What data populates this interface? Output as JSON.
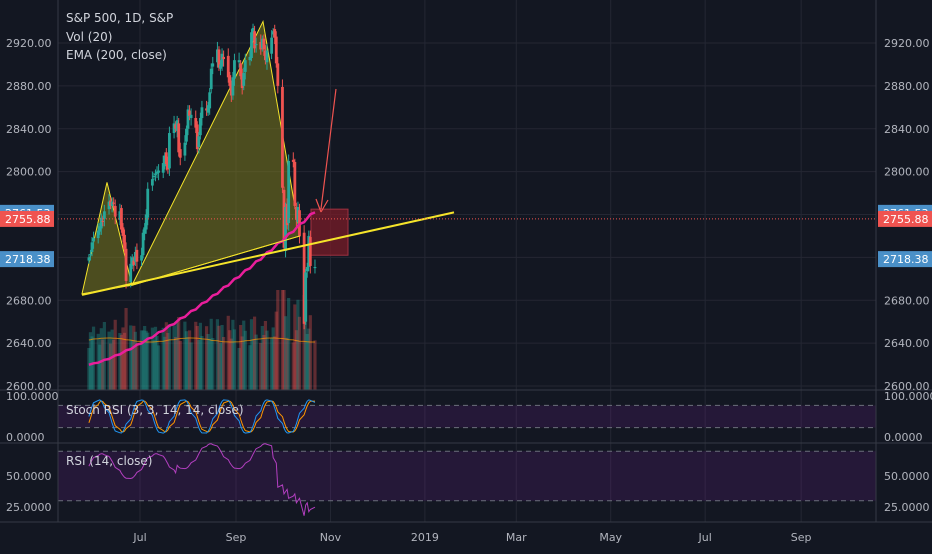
{
  "colors": {
    "background": "#131722",
    "grid": "#242733",
    "up": "#26a69a",
    "down": "#ef5350",
    "ema": "#e91e9b",
    "trendline": "#f5e42a",
    "pattern_fill": "#7c7a1e",
    "rsi_line": "#b23fbf",
    "stoch_k": "#2196f3",
    "stoch_d": "#ff9800",
    "box": "#7a1c28"
  },
  "chart_data": [
    {
      "type": "candlestick",
      "title": "S&P 500, 1D, S&P",
      "legend": [
        "Vol (20)",
        "EMA (200, close)"
      ],
      "ylim": [
        2600,
        2960
      ],
      "y_ticks": [
        "2600.00",
        "2640.00",
        "2680.00",
        "2720.00",
        "2760.00",
        "2800.00",
        "2840.00",
        "2880.00",
        "2920.00"
      ],
      "x_ticks": [
        "Jul",
        "Sep",
        "Nov",
        "2019",
        "Mar",
        "May",
        "Jul",
        "Sep"
      ],
      "price_labels": [
        {
          "value": 2761.53,
          "text": "2761.53",
          "color": "#4a90c8"
        },
        {
          "value": 2755.88,
          "text": "2755.88",
          "color": "#ef5350"
        },
        {
          "value": 2718.38,
          "text": "2718.38",
          "color": "#4a90c8"
        }
      ],
      "start_date": "2018-05-29",
      "closes": [
        2720,
        2723,
        2734,
        2738,
        2745,
        2749,
        2757,
        2753,
        2763,
        2772,
        2768,
        2772,
        2770,
        2758,
        2763,
        2746,
        2740,
        2728,
        2698,
        2714,
        2720,
        2713,
        2725,
        2716,
        2722,
        2743,
        2748,
        2760,
        2784,
        2793,
        2796,
        2798,
        2800,
        2801,
        2808,
        2815,
        2807,
        2802,
        2836,
        2845,
        2840,
        2848,
        2818,
        2813,
        2827,
        2840,
        2858,
        2852,
        2853,
        2841,
        2821,
        2833,
        2850,
        2860,
        2857,
        2862,
        2874,
        2896,
        2901,
        2914,
        2897,
        2900,
        2910,
        2905,
        2888,
        2880,
        2871,
        2888,
        2904,
        2904,
        2889,
        2878,
        2892,
        2904,
        2907,
        2930,
        2934,
        2915,
        2919,
        2914,
        2924,
        2914,
        2904,
        2913,
        2925,
        2931,
        2925,
        2901,
        2880,
        2785,
        2729,
        2767,
        2750,
        2810,
        2809,
        2768,
        2755,
        2767,
        2740,
        2658,
        2706,
        2711,
        2740,
        2712,
        2711
      ],
      "ema_200": {
        "start": 2620,
        "end": 2762
      },
      "volume_max": 1,
      "pattern": {
        "left_shoulder": 2790,
        "head": 2940,
        "neckline_start": 2685,
        "neckline_end": 2762
      },
      "target_box": {
        "top": 2765,
        "bottom": 2722
      }
    },
    {
      "type": "line",
      "title": "Stoch RSI (3, 3, 14, 14, close)",
      "ylim": [
        0,
        100
      ],
      "y_ticks": [
        "100.0000",
        "0.0000"
      ],
      "bands": [
        80,
        20
      ]
    },
    {
      "type": "line",
      "title": "RSI (14, close)",
      "ylim": [
        15,
        85
      ],
      "y_ticks": [
        "50.0000",
        "25.0000"
      ],
      "bands": [
        70,
        30
      ]
    }
  ]
}
